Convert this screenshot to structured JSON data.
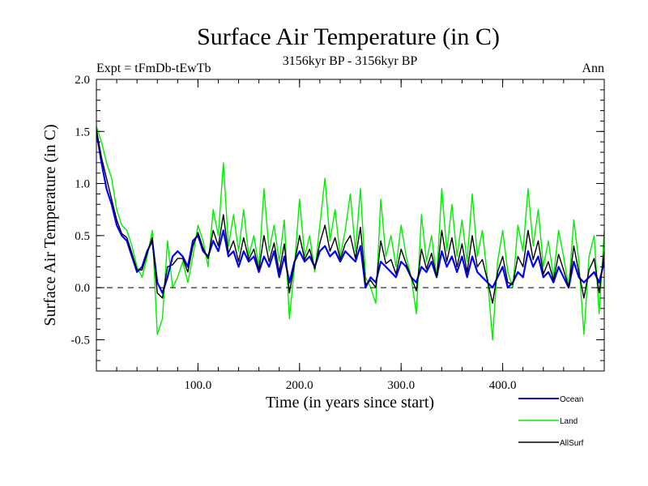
{
  "chart_data": {
    "type": "line",
    "title": "Surface Air Temperature (in C)",
    "subtitle": "3156kyr BP - 3156kyr BP",
    "expt_label": "Expt = tFmDb-tEwTb",
    "season_label": "Ann",
    "xlabel": "Time (in years since start)",
    "ylabel": "Surface Air Temperature (in C)",
    "xlim": [
      0,
      500
    ],
    "ylim": [
      -0.8,
      2.0
    ],
    "x_ticks": [
      100,
      200,
      300,
      400
    ],
    "x_tick_labels": [
      "100.0",
      "200.0",
      "300.0",
      "400.0"
    ],
    "y_ticks": [
      -0.5,
      0.0,
      0.5,
      1.0,
      1.5,
      2.0
    ],
    "y_tick_labels": [
      "-0.5",
      "0.0",
      "0.5",
      "1.0",
      "1.5",
      "2.0"
    ],
    "reference_line": {
      "y": 0.0,
      "style": "dashed"
    },
    "legend_position": "bottom-right",
    "colors": {
      "ocean": "#0000ff",
      "land": "#00ee00",
      "allsurf": "#000000"
    },
    "series": [
      {
        "name": "Land",
        "color": "#00ee00",
        "x": [
          0,
          5,
          10,
          15,
          20,
          25,
          30,
          35,
          40,
          45,
          50,
          55,
          60,
          65,
          70,
          75,
          80,
          85,
          90,
          95,
          100,
          105,
          110,
          115,
          120,
          125,
          130,
          135,
          140,
          145,
          150,
          155,
          160,
          165,
          170,
          175,
          180,
          185,
          190,
          195,
          200,
          205,
          210,
          215,
          220,
          225,
          230,
          235,
          240,
          245,
          250,
          255,
          260,
          265,
          270,
          275,
          280,
          285,
          290,
          295,
          300,
          305,
          310,
          315,
          320,
          325,
          330,
          335,
          340,
          345,
          350,
          355,
          360,
          365,
          370,
          375,
          380,
          385,
          390,
          395,
          400,
          405,
          410,
          415,
          420,
          425,
          430,
          435,
          440,
          445,
          450,
          455,
          460,
          465,
          470,
          475,
          480,
          485,
          490,
          495,
          500
        ],
        "values": [
          1.55,
          1.4,
          1.2,
          1.05,
          0.75,
          0.6,
          0.55,
          0.4,
          0.2,
          0.1,
          0.3,
          0.55,
          -0.45,
          -0.3,
          0.45,
          0.0,
          0.1,
          0.25,
          0.05,
          0.3,
          0.6,
          0.45,
          0.2,
          0.75,
          0.5,
          1.2,
          0.4,
          0.7,
          0.35,
          0.75,
          0.3,
          0.5,
          0.2,
          0.95,
          0.35,
          0.6,
          0.25,
          0.65,
          -0.3,
          0.2,
          0.85,
          0.3,
          0.5,
          0.15,
          0.6,
          1.05,
          0.45,
          0.75,
          0.3,
          0.55,
          0.9,
          0.35,
          0.95,
          0.1,
          0.0,
          -0.15,
          0.85,
          0.3,
          0.5,
          0.2,
          0.6,
          0.3,
          0.1,
          -0.25,
          0.7,
          0.25,
          0.5,
          0.1,
          0.95,
          0.35,
          0.8,
          0.3,
          0.65,
          0.25,
          0.9,
          0.3,
          0.55,
          0.1,
          -0.5,
          0.25,
          0.55,
          0.15,
          0.0,
          0.6,
          0.35,
          0.95,
          0.4,
          0.75,
          0.2,
          0.45,
          0.1,
          0.55,
          0.3,
          0.0,
          0.65,
          0.25,
          -0.45,
          0.3,
          0.5,
          -0.25,
          0.55
        ]
      },
      {
        "name": "Ocean",
        "color": "#0000ff",
        "x": [
          0,
          5,
          10,
          15,
          20,
          25,
          30,
          35,
          40,
          45,
          50,
          55,
          60,
          65,
          70,
          75,
          80,
          85,
          90,
          95,
          100,
          105,
          110,
          115,
          120,
          125,
          130,
          135,
          140,
          145,
          150,
          155,
          160,
          165,
          170,
          175,
          180,
          185,
          190,
          195,
          200,
          205,
          210,
          215,
          220,
          225,
          230,
          235,
          240,
          245,
          250,
          255,
          260,
          265,
          270,
          275,
          280,
          285,
          290,
          295,
          300,
          305,
          310,
          315,
          320,
          325,
          330,
          335,
          340,
          345,
          350,
          355,
          360,
          365,
          370,
          375,
          380,
          385,
          390,
          395,
          400,
          405,
          410,
          415,
          420,
          425,
          430,
          435,
          440,
          445,
          450,
          455,
          460,
          465,
          470,
          475,
          480,
          485,
          490,
          495,
          500
        ],
        "values": [
          1.5,
          1.2,
          0.95,
          0.8,
          0.6,
          0.5,
          0.45,
          0.3,
          0.15,
          0.2,
          0.35,
          0.45,
          0.05,
          -0.05,
          0.1,
          0.3,
          0.35,
          0.3,
          0.2,
          0.45,
          0.5,
          0.35,
          0.3,
          0.45,
          0.35,
          0.55,
          0.3,
          0.35,
          0.2,
          0.35,
          0.25,
          0.3,
          0.15,
          0.3,
          0.2,
          0.35,
          0.1,
          0.3,
          0.05,
          0.25,
          0.35,
          0.25,
          0.3,
          0.2,
          0.35,
          0.4,
          0.3,
          0.35,
          0.25,
          0.35,
          0.3,
          0.25,
          0.4,
          0.0,
          0.1,
          0.05,
          0.25,
          0.2,
          0.15,
          0.1,
          0.25,
          0.2,
          0.1,
          0.05,
          0.2,
          0.15,
          0.25,
          0.1,
          0.35,
          0.2,
          0.3,
          0.15,
          0.3,
          0.1,
          0.3,
          0.15,
          0.1,
          0.05,
          0.0,
          0.1,
          0.2,
          0.0,
          0.05,
          0.15,
          0.1,
          0.35,
          0.2,
          0.3,
          0.1,
          0.15,
          0.05,
          0.2,
          0.1,
          0.0,
          0.25,
          0.1,
          0.05,
          0.1,
          0.15,
          0.05,
          0.25
        ]
      },
      {
        "name": "AllSurf",
        "color": "#000000",
        "x": [
          0,
          5,
          10,
          15,
          20,
          25,
          30,
          35,
          40,
          45,
          50,
          55,
          60,
          65,
          70,
          75,
          80,
          85,
          90,
          95,
          100,
          105,
          110,
          115,
          120,
          125,
          130,
          135,
          140,
          145,
          150,
          155,
          160,
          165,
          170,
          175,
          180,
          185,
          190,
          195,
          200,
          205,
          210,
          215,
          220,
          225,
          230,
          235,
          240,
          245,
          250,
          255,
          260,
          265,
          270,
          275,
          280,
          285,
          290,
          295,
          300,
          305,
          310,
          315,
          320,
          325,
          330,
          335,
          340,
          345,
          350,
          355,
          360,
          365,
          370,
          375,
          380,
          385,
          390,
          395,
          400,
          405,
          410,
          415,
          420,
          425,
          430,
          435,
          440,
          445,
          450,
          455,
          460,
          465,
          470,
          475,
          480,
          485,
          490,
          495,
          500
        ],
        "values": [
          1.52,
          1.25,
          1.05,
          0.85,
          0.65,
          0.52,
          0.48,
          0.33,
          0.17,
          0.17,
          0.33,
          0.48,
          -0.05,
          -0.1,
          0.2,
          0.22,
          0.28,
          0.28,
          0.15,
          0.4,
          0.53,
          0.38,
          0.28,
          0.55,
          0.4,
          0.7,
          0.33,
          0.45,
          0.25,
          0.48,
          0.27,
          0.37,
          0.17,
          0.5,
          0.25,
          0.43,
          0.15,
          0.42,
          -0.05,
          0.23,
          0.5,
          0.27,
          0.37,
          0.18,
          0.43,
          0.6,
          0.35,
          0.48,
          0.27,
          0.42,
          0.5,
          0.28,
          0.58,
          0.03,
          0.07,
          0.0,
          0.45,
          0.23,
          0.27,
          0.13,
          0.37,
          0.23,
          0.1,
          -0.03,
          0.37,
          0.18,
          0.33,
          0.1,
          0.55,
          0.25,
          0.48,
          0.2,
          0.42,
          0.15,
          0.5,
          0.2,
          0.27,
          0.07,
          -0.15,
          0.15,
          0.3,
          0.05,
          0.03,
          0.3,
          0.2,
          0.55,
          0.27,
          0.45,
          0.13,
          0.25,
          0.07,
          0.32,
          0.17,
          0.0,
          0.4,
          0.15,
          -0.1,
          0.17,
          0.28,
          -0.05,
          0.35
        ]
      }
    ]
  }
}
